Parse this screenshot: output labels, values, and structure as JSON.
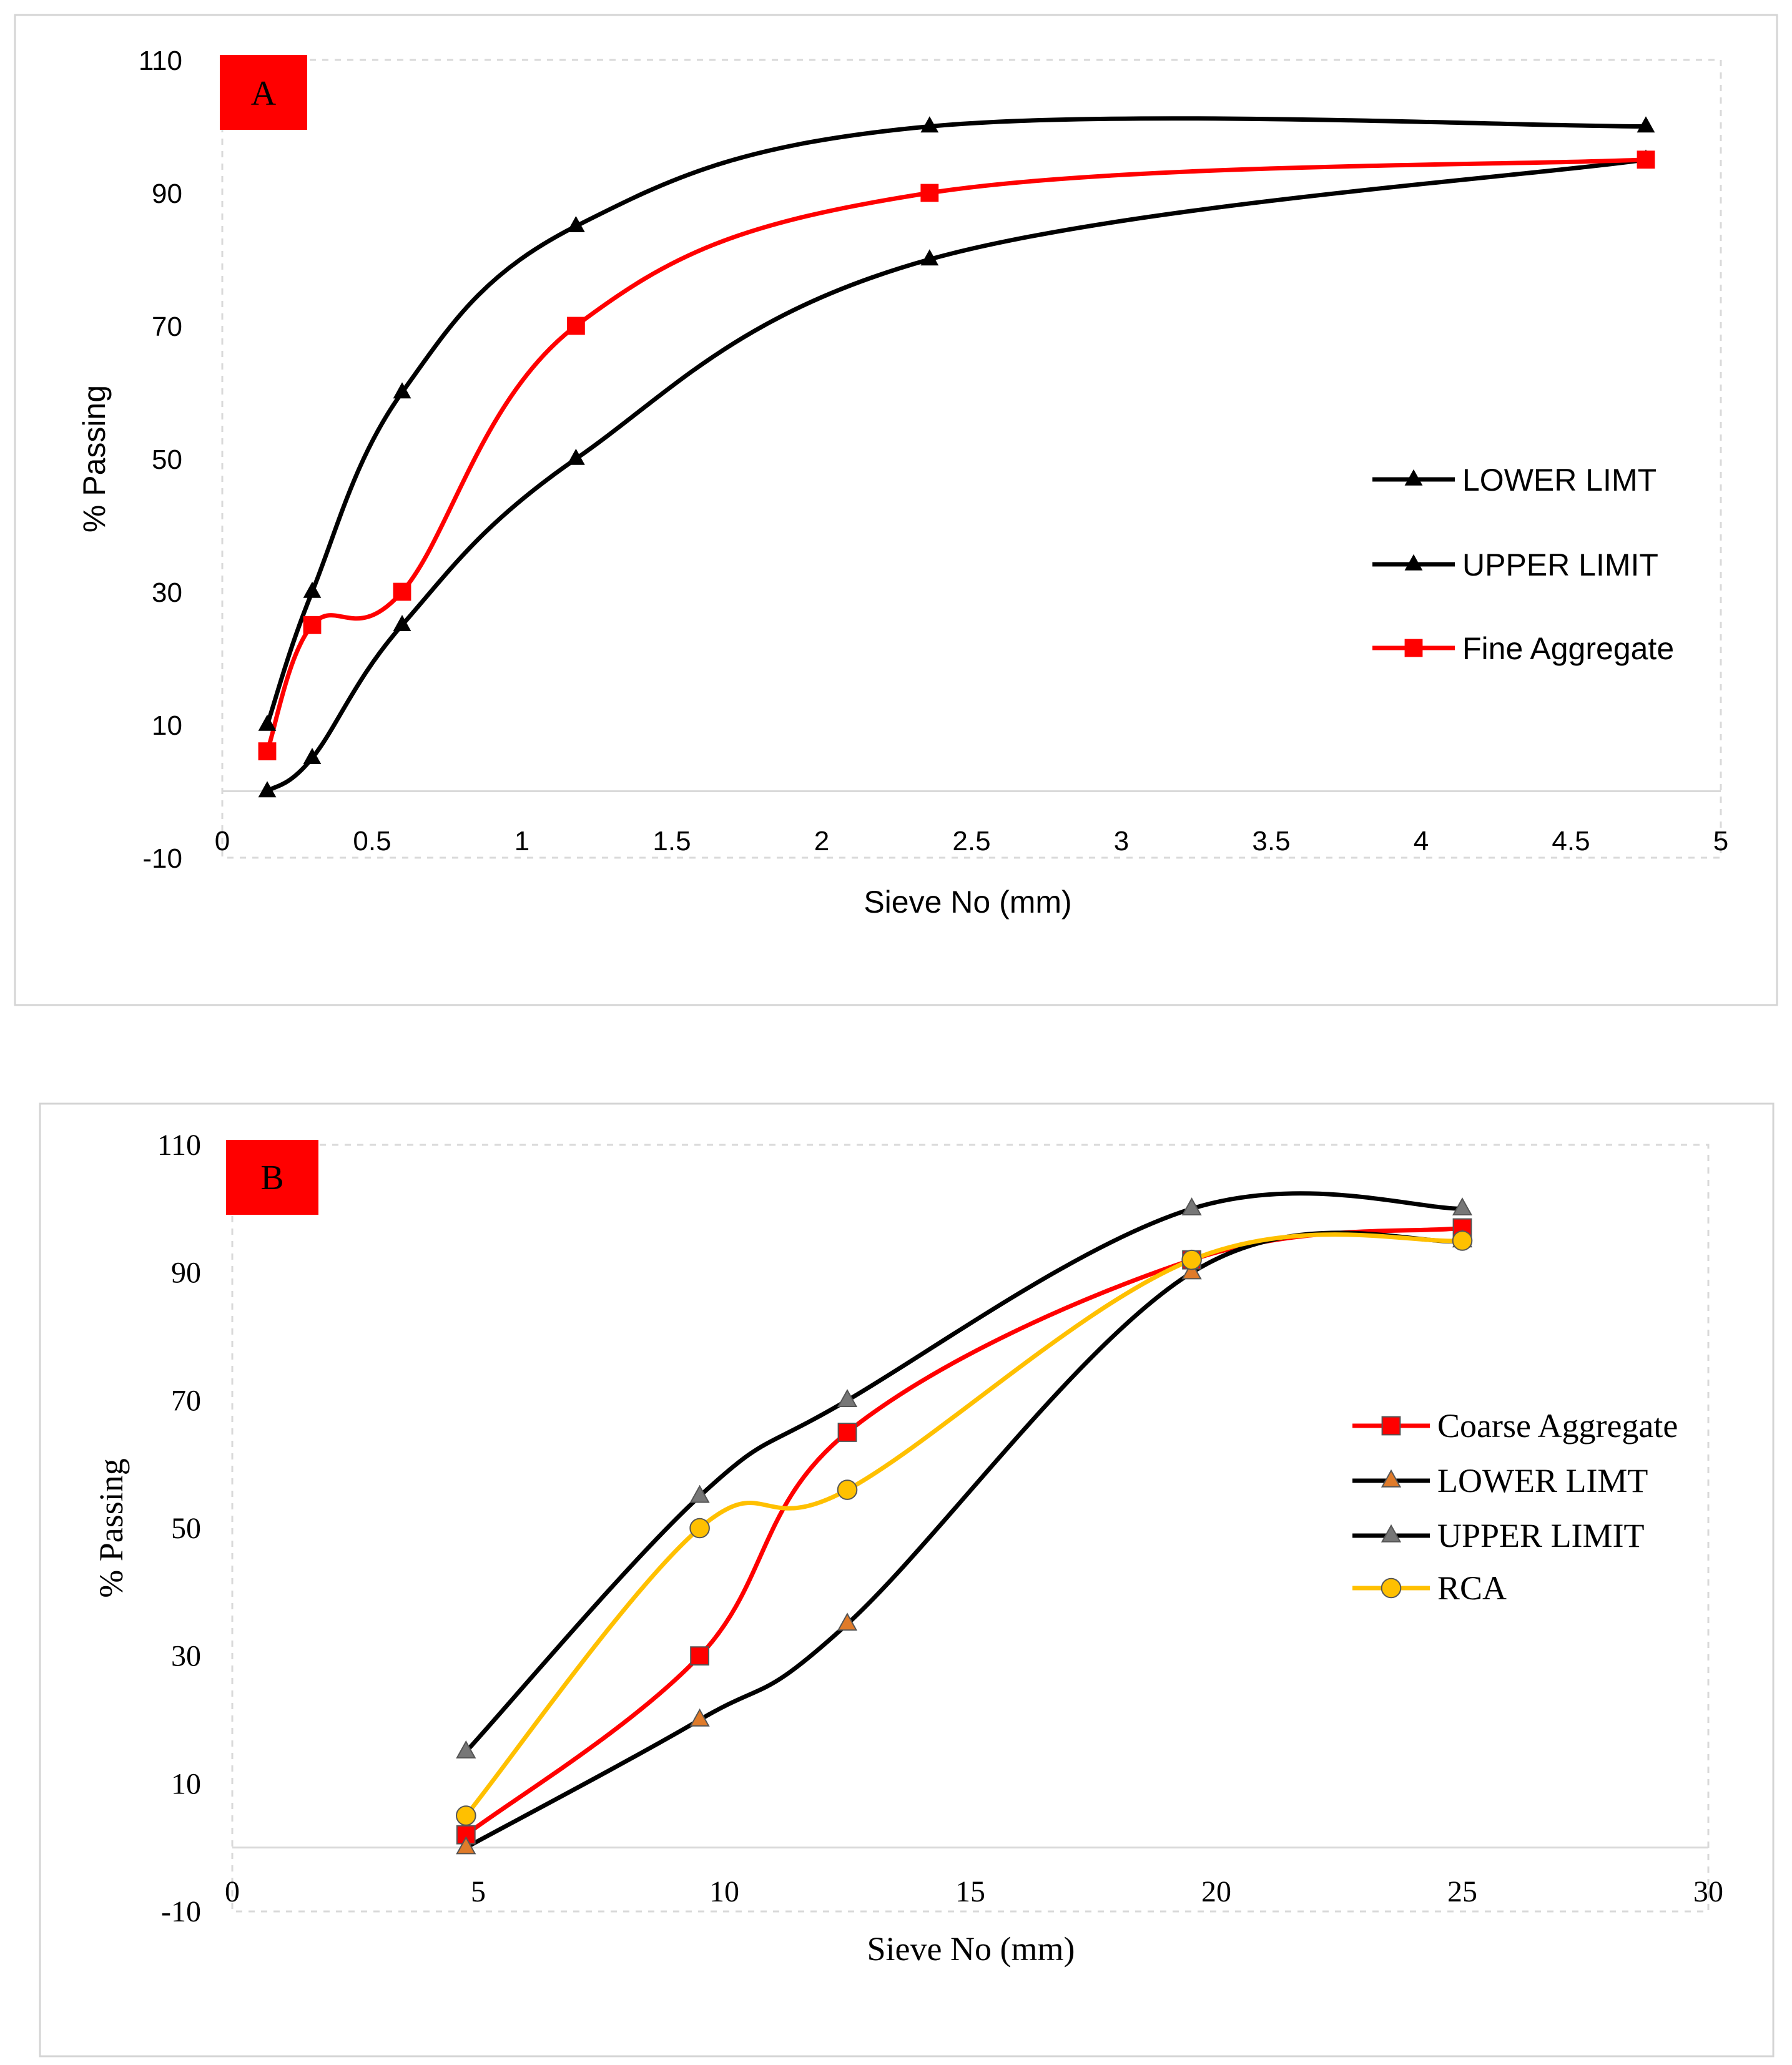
{
  "chart_data": [
    {
      "type": "line",
      "panel_label": "A",
      "title": "",
      "xlabel": "Sieve No (mm)",
      "ylabel": "% Passing",
      "xlim": [
        0,
        5
      ],
      "ylim": [
        -10,
        110
      ],
      "xticks": [
        "0",
        "0.5",
        "1",
        "1.5",
        "2",
        "2.5",
        "3",
        "3.5",
        "4",
        "4.5",
        "5"
      ],
      "yticks": [
        "110",
        "90",
        "70",
        "50",
        "30",
        "10",
        "-10"
      ],
      "grid": true,
      "legend_position": "right",
      "series": [
        {
          "name": "LOWER LIMT",
          "color": "#000000",
          "marker": "triangle",
          "marker_color": "#000000",
          "x": [
            0.15,
            0.3,
            0.6,
            1.18,
            2.36,
            4.75
          ],
          "values": [
            0,
            5,
            25,
            50,
            80,
            95
          ]
        },
        {
          "name": "UPPER LIMIT",
          "color": "#000000",
          "marker": "triangle",
          "marker_color": "#000000",
          "x": [
            0.15,
            0.3,
            0.6,
            1.18,
            2.36,
            4.75
          ],
          "values": [
            10,
            30,
            60,
            85,
            100,
            100
          ]
        },
        {
          "name": "Fine Aggregate",
          "color": "#ff0000",
          "marker": "square",
          "marker_color": "#ff0000",
          "x": [
            0.15,
            0.3,
            0.6,
            1.18,
            2.36,
            4.75
          ],
          "values": [
            6,
            25,
            30,
            70,
            90,
            95
          ]
        }
      ]
    },
    {
      "type": "line",
      "panel_label": "B",
      "title": "",
      "xlabel": "Sieve No (mm)",
      "ylabel": "% Passing",
      "xlim": [
        0,
        30
      ],
      "ylim": [
        -10,
        110
      ],
      "xticks": [
        "0",
        "5",
        "10",
        "15",
        "20",
        "25",
        "30"
      ],
      "yticks": [
        "110",
        "90",
        "70",
        "50",
        "30",
        "10",
        "-10"
      ],
      "grid": true,
      "legend_position": "right",
      "series": [
        {
          "name": "Coarse Aggregate",
          "color": "#ff0000",
          "marker": "square",
          "marker_color": "#ff0000",
          "x": [
            4.75,
            9.5,
            12.5,
            19.5,
            25
          ],
          "values": [
            2,
            30,
            65,
            92,
            97
          ]
        },
        {
          "name": "LOWER LIMT",
          "color": "#000000",
          "marker": "triangle",
          "marker_color": "#e07b2a",
          "x": [
            4.75,
            9.5,
            12.5,
            19.5,
            25
          ],
          "values": [
            0,
            20,
            35,
            90,
            95
          ]
        },
        {
          "name": "UPPER LIMIT",
          "color": "#000000",
          "marker": "triangle",
          "marker_color": "#777777",
          "x": [
            4.75,
            9.5,
            12.5,
            19.5,
            25
          ],
          "values": [
            15,
            55,
            70,
            100,
            100
          ]
        },
        {
          "name": "RCA",
          "color": "#ffc000",
          "marker": "circle",
          "marker_color": "#ffc000",
          "x": [
            4.75,
            9.5,
            12.5,
            19.5,
            25
          ],
          "values": [
            5,
            50,
            56,
            92,
            95
          ]
        }
      ]
    }
  ]
}
